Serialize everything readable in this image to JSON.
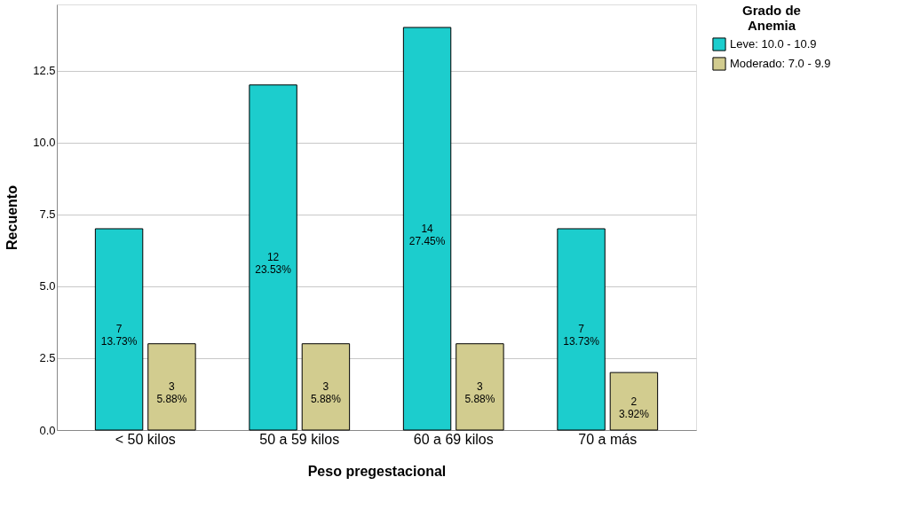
{
  "chart_data": {
    "type": "bar",
    "xlabel": "Peso pregestacional",
    "ylabel": "Recuento",
    "legend_title": "Grado de Anemia",
    "categories": [
      "< 50 kilos",
      "50 a 59 kilos",
      "60 a 69 kilos",
      "70 a más"
    ],
    "series": [
      {
        "name": "Leve: 10.0 - 10.9",
        "color": "#1ccdcd",
        "values": [
          7,
          12,
          14,
          7
        ],
        "value_labels": [
          "7\n13.73%",
          "12\n23.53%",
          "14\n27.45%",
          "7\n13.73%"
        ]
      },
      {
        "name": "Moderado: 7.0 - 9.9",
        "color": "#d2cc8f",
        "values": [
          3,
          3,
          3,
          2
        ],
        "value_labels": [
          "3\n5.88%",
          "3\n5.88%",
          "3\n5.88%",
          "2\n3.92%"
        ]
      }
    ],
    "ylim": [
      0,
      14.8
    ],
    "yticks": [
      {
        "value": 0,
        "label": "0.0"
      },
      {
        "value": 2.5,
        "label": "2.5"
      },
      {
        "value": 5,
        "label": "5.0"
      },
      {
        "value": 7.5,
        "label": "7.5"
      },
      {
        "value": 10,
        "label": "10.0"
      },
      {
        "value": 12.5,
        "label": "12.5"
      }
    ],
    "grid": "y",
    "legend": "top right"
  }
}
